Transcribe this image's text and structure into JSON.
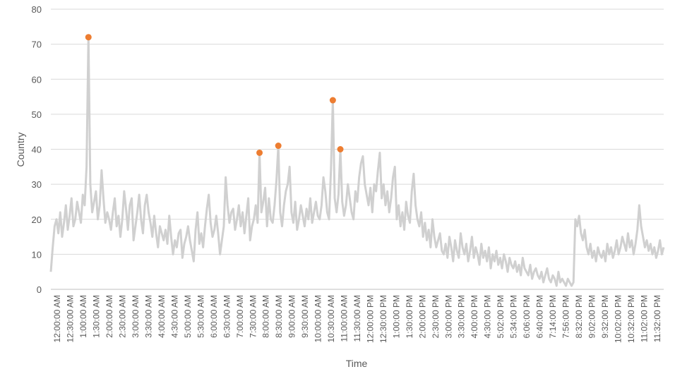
{
  "chart_data": {
    "type": "line",
    "xlabel": "Time",
    "ylabel": "Country",
    "ylim": [
      0,
      80
    ],
    "yticks": [
      0,
      10,
      20,
      30,
      40,
      50,
      60,
      70,
      80
    ],
    "grid": true,
    "legend": "none",
    "x_tick_labels": [
      "12:00:00 AM",
      "12:30:00 AM",
      "1:00:00 AM",
      "1:30:00 AM",
      "2:00:00 AM",
      "2:30:00 AM",
      "3:00:00 AM",
      "3:30:00 AM",
      "4:00:00 AM",
      "4:30:00 AM",
      "5:00:00 AM",
      "5:30:00 AM",
      "6:00:00 AM",
      "6:30:00 AM",
      "7:00:00 AM",
      "7:30:00 AM",
      "8:00:00 AM",
      "8:30:00 AM",
      "9:00:00 AM",
      "9:30:00 AM",
      "10:00:00 AM",
      "10:30:00 AM",
      "11:00:00 AM",
      "11:30:00 AM",
      "12:00:00 PM",
      "12:30:00 PM",
      "1:00:00 PM",
      "1:30:00 PM",
      "2:00:00 PM",
      "2:30:00 PM",
      "3:00:00 PM",
      "3:30:00 PM",
      "4:00:00 PM",
      "4:30:00 PM",
      "5:02:00 PM",
      "5:34:00 PM",
      "6:06:00 PM",
      "6:40:00 PM",
      "7:14:00 PM",
      "7:56:00 PM",
      "8:32:00 PM",
      "9:02:00 PM",
      "9:32:00 PM",
      "10:02:00 PM",
      "10:32:00 PM",
      "11:02:00 PM",
      "11:32:00 PM"
    ],
    "series": [
      {
        "color": "#d0d0d0",
        "values": [
          5,
          12,
          18,
          20,
          16,
          22,
          15,
          19,
          24,
          17,
          21,
          26,
          18,
          20,
          25,
          22,
          19,
          27,
          24,
          35,
          72,
          30,
          22,
          25,
          28,
          20,
          24,
          34,
          26,
          19,
          22,
          20,
          17,
          22,
          26,
          18,
          21,
          15,
          20,
          28,
          23,
          17,
          24,
          26,
          14,
          18,
          22,
          27,
          20,
          16,
          24,
          27,
          22,
          19,
          15,
          21,
          16,
          12,
          18,
          16,
          14,
          17,
          13,
          21,
          15,
          10,
          14,
          12,
          16,
          17,
          9,
          13,
          15,
          18,
          14,
          11,
          8,
          17,
          22,
          13,
          16,
          12,
          18,
          23,
          27,
          19,
          15,
          17,
          21,
          16,
          10,
          14,
          18,
          32,
          24,
          19,
          22,
          23,
          17,
          20,
          24,
          18,
          22,
          16,
          21,
          26,
          14,
          18,
          20,
          24,
          19,
          39,
          22,
          25,
          29,
          18,
          26,
          20,
          19,
          24,
          31,
          41,
          22,
          18,
          24,
          28,
          30,
          35,
          22,
          19,
          25,
          17,
          20,
          24,
          21,
          18,
          23,
          20,
          26,
          19,
          22,
          25,
          21,
          20,
          24,
          32,
          28,
          22,
          20,
          34,
          54,
          26,
          22,
          27,
          40,
          25,
          21,
          24,
          30,
          26,
          22,
          20,
          28,
          25,
          32,
          36,
          38,
          30,
          27,
          24,
          29,
          22,
          30,
          28,
          34,
          39,
          26,
          30,
          24,
          28,
          22,
          26,
          32,
          35,
          20,
          24,
          18,
          22,
          17,
          25,
          21,
          19,
          28,
          33,
          24,
          20,
          18,
          22,
          15,
          19,
          14,
          17,
          12,
          20,
          15,
          12,
          14,
          16,
          11,
          10,
          13,
          9,
          15,
          12,
          8,
          14,
          11,
          9,
          16,
          12,
          10,
          13,
          8,
          11,
          15,
          9,
          12,
          10,
          7,
          13,
          9,
          11,
          8,
          12,
          6,
          10,
          8,
          11,
          7,
          9,
          6,
          10,
          8,
          5,
          9,
          7,
          6,
          8,
          5,
          7,
          4,
          9,
          6,
          5,
          4,
          7,
          3,
          5,
          6,
          4,
          3,
          5,
          2,
          4,
          6,
          3,
          2,
          4,
          3,
          1,
          5,
          2,
          3,
          2,
          1,
          3,
          2,
          1,
          2,
          20,
          18,
          21,
          16,
          14,
          17,
          12,
          10,
          13,
          9,
          11,
          8,
          12,
          10,
          9,
          11,
          8,
          13,
          10,
          12,
          9,
          11,
          14,
          10,
          12,
          15,
          13,
          11,
          16,
          12,
          14,
          10,
          13,
          17,
          24,
          18,
          15,
          12,
          14,
          11,
          13,
          10,
          12,
          9,
          11,
          14,
          10,
          12
        ]
      }
    ],
    "highlights": [
      {
        "x_index": 20,
        "value": 72,
        "color": "#ed7d31"
      },
      {
        "x_index": 111,
        "value": 39,
        "color": "#ed7d31"
      },
      {
        "x_index": 121,
        "value": 41,
        "color": "#ed7d31"
      },
      {
        "x_index": 150,
        "value": 54,
        "color": "#ed7d31"
      },
      {
        "x_index": 154,
        "value": 40,
        "color": "#ed7d31"
      }
    ]
  }
}
